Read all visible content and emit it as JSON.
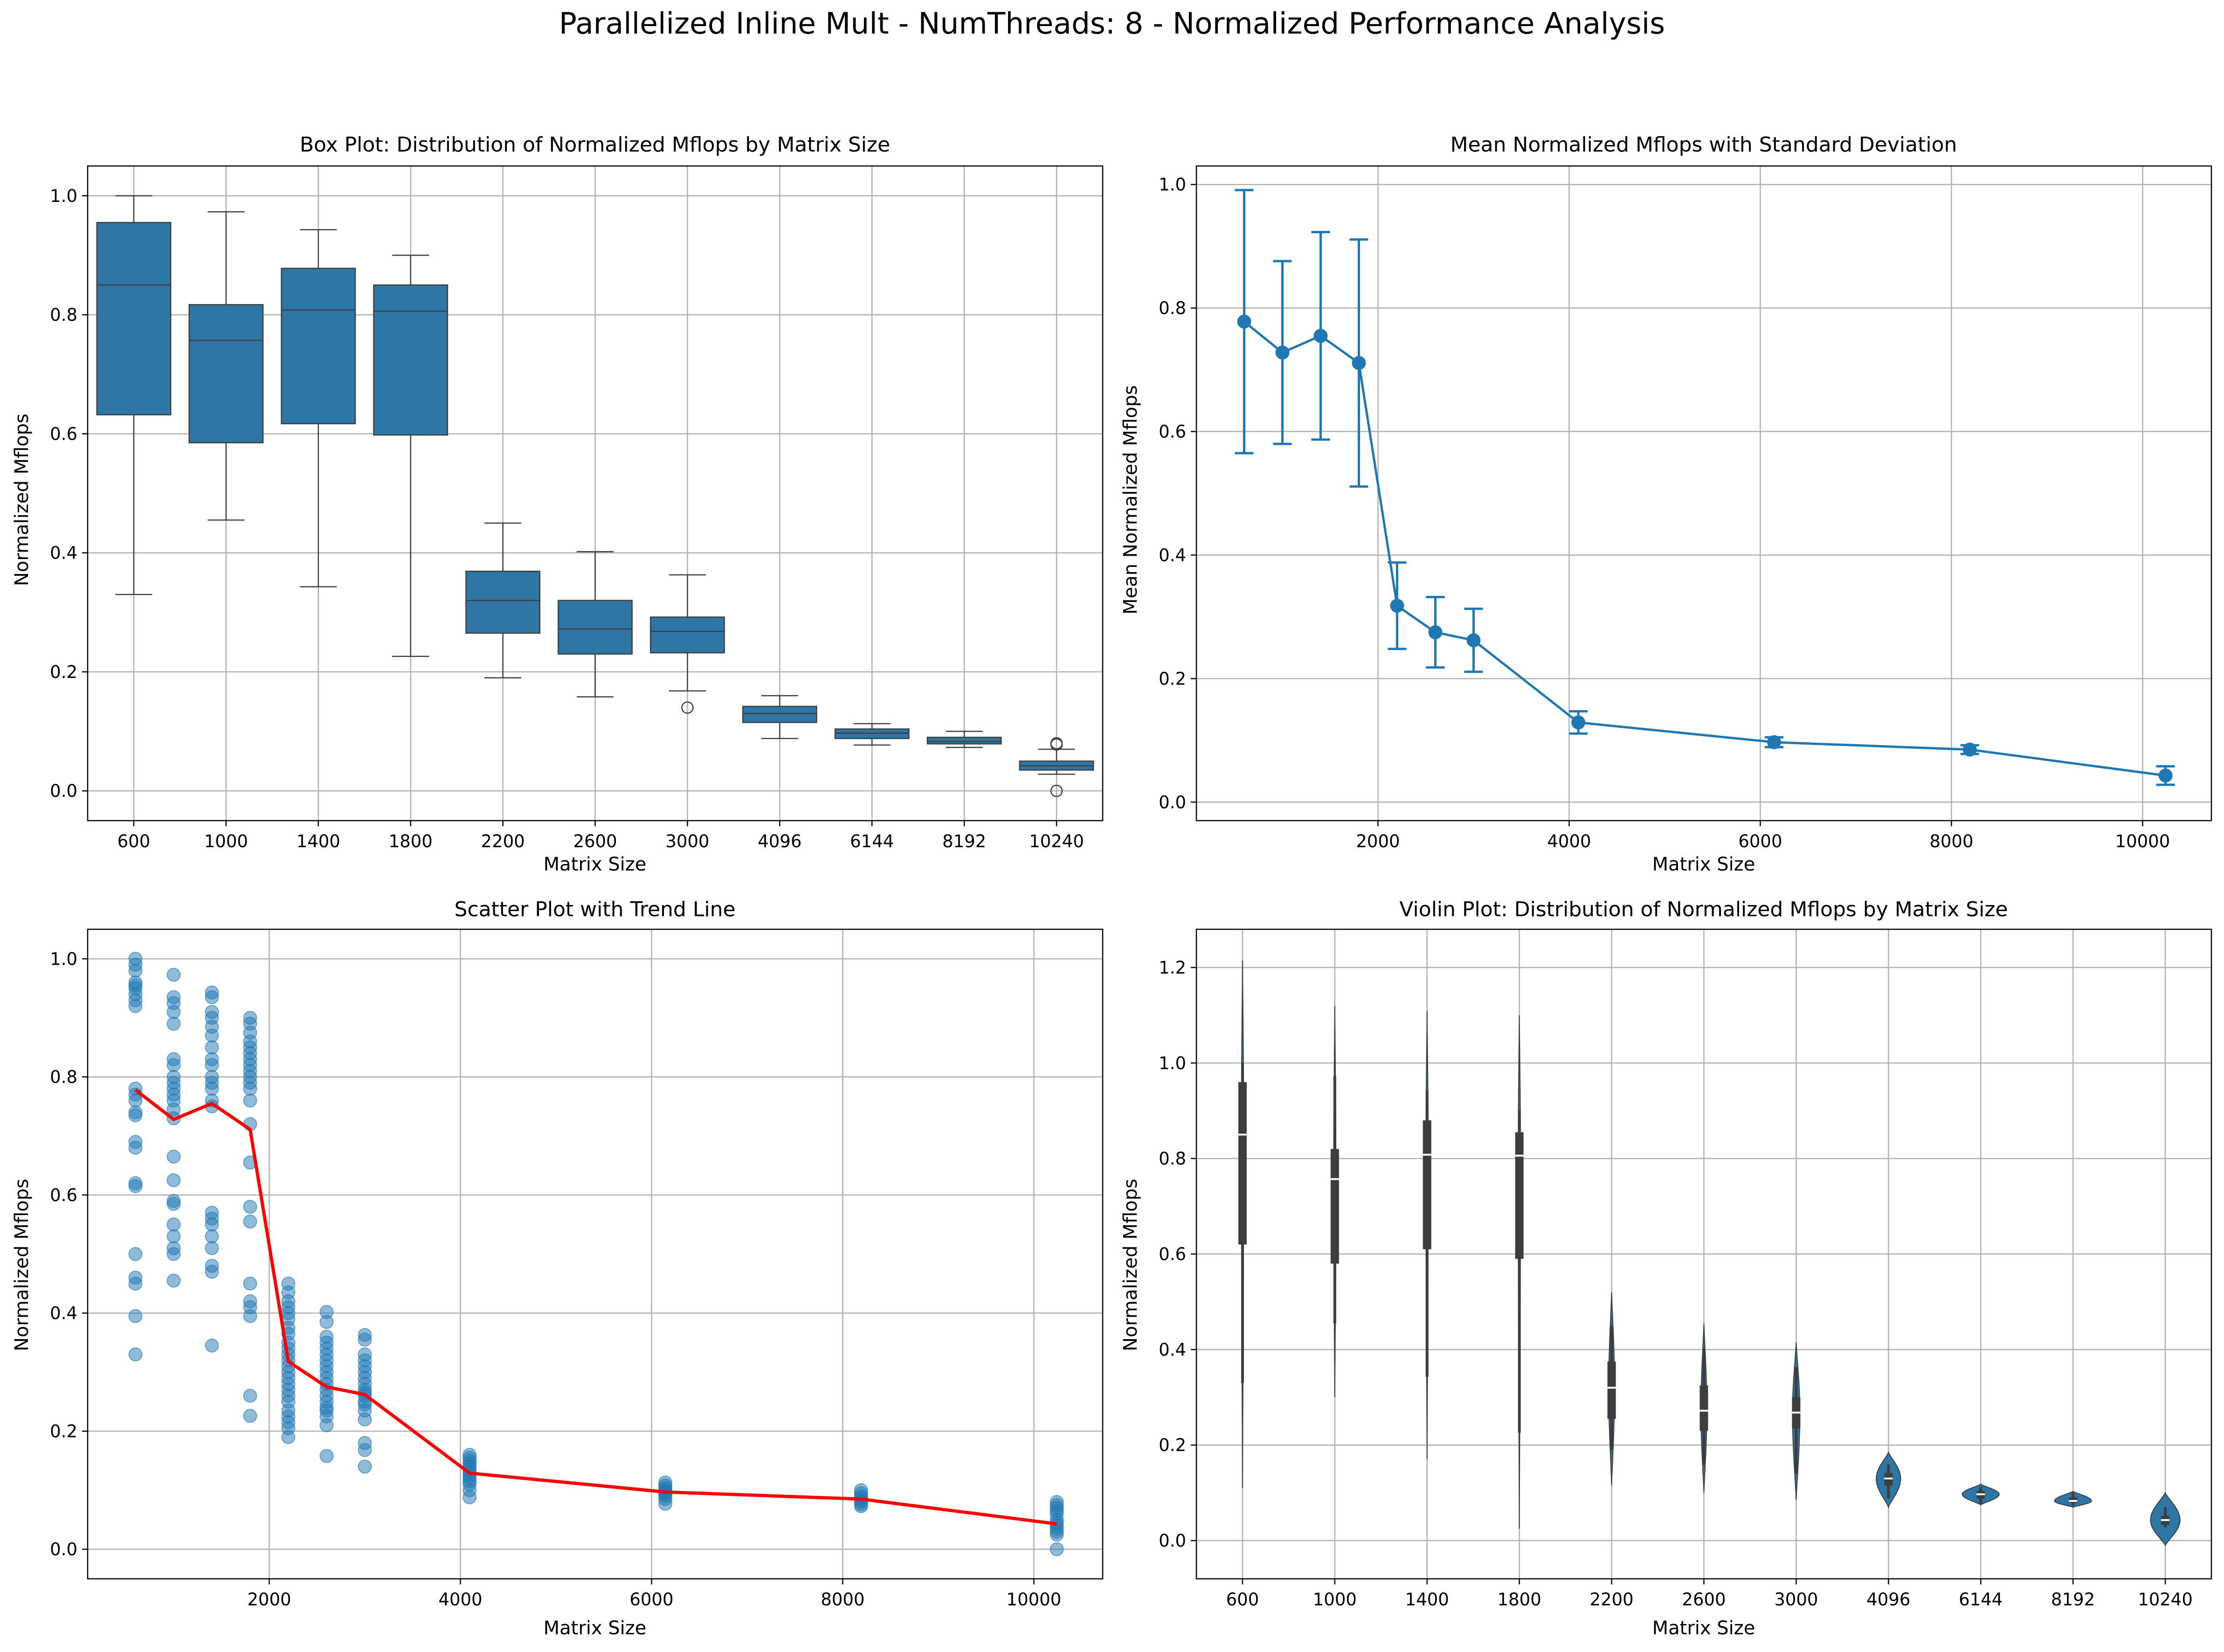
{
  "figure": {
    "title": "Parallelized Inline Mult - NumThreads: 8 - Normalized Performance Analysis"
  },
  "colors": {
    "box": "#2e76a6",
    "errorbar": "#1f77b4",
    "scatter": "#1f77b4",
    "trend": "#ff0000",
    "violin": "#2e76a6",
    "grid": "#b0b0b0"
  },
  "chart_data": [
    {
      "type": "box",
      "title": "Box Plot: Distribution of Normalized Mflops by Matrix Size",
      "xlabel": "Matrix Size",
      "ylabel": "Normalized Mflops",
      "ylim": [
        -0.05,
        1.05
      ],
      "yticks": [
        0.0,
        0.2,
        0.4,
        0.6,
        0.8,
        1.0
      ],
      "grid": true,
      "categories": [
        "600",
        "1000",
        "1400",
        "1800",
        "2200",
        "2600",
        "3000",
        "4096",
        "6144",
        "8192",
        "10240"
      ],
      "boxes": [
        {
          "whisker_low": 0.33,
          "q1": 0.632,
          "median": 0.85,
          "q3": 0.955,
          "whisker_high": 1.0,
          "outliers": []
        },
        {
          "whisker_low": 0.455,
          "q1": 0.585,
          "median": 0.757,
          "q3": 0.817,
          "whisker_high": 0.973,
          "outliers": []
        },
        {
          "whisker_low": 0.343,
          "q1": 0.617,
          "median": 0.808,
          "q3": 0.878,
          "whisker_high": 0.943,
          "outliers": []
        },
        {
          "whisker_low": 0.226,
          "q1": 0.598,
          "median": 0.806,
          "q3": 0.85,
          "whisker_high": 0.9,
          "outliers": []
        },
        {
          "whisker_low": 0.19,
          "q1": 0.265,
          "median": 0.32,
          "q3": 0.369,
          "whisker_high": 0.45,
          "outliers": []
        },
        {
          "whisker_low": 0.158,
          "q1": 0.23,
          "median": 0.272,
          "q3": 0.32,
          "whisker_high": 0.402,
          "outliers": []
        },
        {
          "whisker_low": 0.168,
          "q1": 0.232,
          "median": 0.268,
          "q3": 0.292,
          "whisker_high": 0.363,
          "outliers": [
            0.14
          ]
        },
        {
          "whisker_low": 0.088,
          "q1": 0.115,
          "median": 0.13,
          "q3": 0.142,
          "whisker_high": 0.16,
          "outliers": []
        },
        {
          "whisker_low": 0.077,
          "q1": 0.088,
          "median": 0.097,
          "q3": 0.104,
          "whisker_high": 0.113,
          "outliers": []
        },
        {
          "whisker_low": 0.073,
          "q1": 0.079,
          "median": 0.083,
          "q3": 0.09,
          "whisker_high": 0.1,
          "outliers": []
        },
        {
          "whisker_low": 0.028,
          "q1": 0.035,
          "median": 0.042,
          "q3": 0.05,
          "whisker_high": 0.07,
          "outliers": [
            0.0,
            0.08,
            0.078
          ]
        }
      ]
    },
    {
      "type": "line",
      "title": "Mean Normalized Mflops with Standard Deviation",
      "xlabel": "Matrix Size",
      "ylabel": "Mean Normalized Mflops",
      "xlim": [
        100,
        10720
      ],
      "ylim": [
        -0.03,
        1.03
      ],
      "xticks": [
        2000,
        4000,
        6000,
        8000,
        10000
      ],
      "yticks": [
        0.0,
        0.2,
        0.4,
        0.6,
        0.8,
        1.0
      ],
      "grid": true,
      "x": [
        600,
        1000,
        1400,
        1800,
        2200,
        2600,
        3000,
        4096,
        6144,
        8192,
        10240
      ],
      "mean": [
        0.778,
        0.728,
        0.755,
        0.711,
        0.318,
        0.275,
        0.262,
        0.129,
        0.097,
        0.085,
        0.043
      ],
      "std": [
        0.213,
        0.148,
        0.168,
        0.2,
        0.07,
        0.057,
        0.051,
        0.018,
        0.008,
        0.007,
        0.015
      ]
    },
    {
      "type": "scatter",
      "title": "Scatter Plot with Trend Line",
      "xlabel": "Matrix Size",
      "ylabel": "Normalized Mflops",
      "xlim": [
        100,
        10720
      ],
      "ylim": [
        -0.05,
        1.05
      ],
      "xticks": [
        2000,
        4000,
        6000,
        8000,
        10000
      ],
      "yticks": [
        0.0,
        0.2,
        0.4,
        0.6,
        0.8,
        1.0
      ],
      "grid": true,
      "points": [
        {
          "x": 600,
          "ys": [
            1.0,
            0.99,
            0.98,
            0.96,
            0.955,
            0.95,
            0.94,
            0.93,
            0.92,
            0.78,
            0.77,
            0.76,
            0.74,
            0.735,
            0.69,
            0.68,
            0.62,
            0.615,
            0.5,
            0.46,
            0.45,
            0.395,
            0.33
          ]
        },
        {
          "x": 1000,
          "ys": [
            0.973,
            0.935,
            0.925,
            0.91,
            0.89,
            0.83,
            0.82,
            0.8,
            0.79,
            0.78,
            0.77,
            0.76,
            0.745,
            0.73,
            0.665,
            0.625,
            0.59,
            0.585,
            0.55,
            0.53,
            0.51,
            0.5,
            0.455
          ]
        },
        {
          "x": 1400,
          "ys": [
            0.943,
            0.935,
            0.91,
            0.9,
            0.885,
            0.87,
            0.85,
            0.83,
            0.82,
            0.8,
            0.79,
            0.78,
            0.76,
            0.75,
            0.57,
            0.56,
            0.55,
            0.53,
            0.51,
            0.48,
            0.47,
            0.345
          ]
        },
        {
          "x": 1800,
          "ys": [
            0.9,
            0.89,
            0.875,
            0.86,
            0.85,
            0.84,
            0.83,
            0.82,
            0.81,
            0.8,
            0.79,
            0.78,
            0.76,
            0.72,
            0.655,
            0.58,
            0.555,
            0.45,
            0.42,
            0.41,
            0.395,
            0.26,
            0.226
          ]
        },
        {
          "x": 2200,
          "ys": [
            0.45,
            0.435,
            0.42,
            0.41,
            0.4,
            0.39,
            0.375,
            0.365,
            0.35,
            0.34,
            0.33,
            0.32,
            0.31,
            0.3,
            0.29,
            0.28,
            0.27,
            0.26,
            0.25,
            0.235,
            0.225,
            0.215,
            0.205,
            0.19
          ]
        },
        {
          "x": 2600,
          "ys": [
            0.402,
            0.385,
            0.36,
            0.35,
            0.34,
            0.33,
            0.32,
            0.31,
            0.3,
            0.29,
            0.28,
            0.27,
            0.26,
            0.25,
            0.24,
            0.235,
            0.225,
            0.21,
            0.158
          ]
        },
        {
          "x": 3000,
          "ys": [
            0.363,
            0.355,
            0.33,
            0.32,
            0.31,
            0.3,
            0.29,
            0.28,
            0.27,
            0.265,
            0.26,
            0.25,
            0.245,
            0.235,
            0.22,
            0.18,
            0.168,
            0.14
          ]
        },
        {
          "x": 4096,
          "ys": [
            0.16,
            0.155,
            0.15,
            0.145,
            0.14,
            0.135,
            0.13,
            0.125,
            0.12,
            0.115,
            0.11,
            0.1,
            0.088
          ]
        },
        {
          "x": 6144,
          "ys": [
            0.113,
            0.108,
            0.104,
            0.1,
            0.097,
            0.094,
            0.09,
            0.085,
            0.077
          ]
        },
        {
          "x": 8192,
          "ys": [
            0.1,
            0.095,
            0.09,
            0.087,
            0.083,
            0.08,
            0.076,
            0.073
          ]
        },
        {
          "x": 10240,
          "ys": [
            0.08,
            0.075,
            0.07,
            0.065,
            0.06,
            0.05,
            0.045,
            0.04,
            0.035,
            0.03,
            0.025,
            0.0
          ]
        }
      ],
      "trend": {
        "x": [
          600,
          1000,
          1400,
          1800,
          2200,
          2600,
          3000,
          4096,
          6144,
          8192,
          10240
        ],
        "y": [
          0.778,
          0.728,
          0.755,
          0.711,
          0.318,
          0.275,
          0.262,
          0.129,
          0.097,
          0.085,
          0.043
        ]
      }
    },
    {
      "type": "violin",
      "title": "Violin Plot: Distribution of Normalized Mflops by Matrix Size",
      "xlabel": "Matrix Size",
      "ylabel": "Normalized Mflops",
      "ylim": [
        -0.08,
        1.28
      ],
      "yticks": [
        0.0,
        0.2,
        0.4,
        0.6,
        0.8,
        1.0,
        1.2
      ],
      "grid": true,
      "categories": [
        "600",
        "1000",
        "1400",
        "1800",
        "2200",
        "2600",
        "3000",
        "4096",
        "6144",
        "8192",
        "10240"
      ],
      "violins": [
        {
          "min": 0.11,
          "max": 1.215,
          "q1": 0.62,
          "median": 0.85,
          "q3": 0.96,
          "whisker_low": 0.33,
          "whisker_high": 1.0,
          "width": 0.03
        },
        {
          "min": 0.3,
          "max": 1.12,
          "q1": 0.58,
          "median": 0.757,
          "q3": 0.82,
          "whisker_low": 0.455,
          "whisker_high": 0.973,
          "width": 0.03
        },
        {
          "min": 0.17,
          "max": 1.11,
          "q1": 0.61,
          "median": 0.808,
          "q3": 0.88,
          "whisker_low": 0.343,
          "whisker_high": 0.943,
          "width": 0.03
        },
        {
          "min": 0.025,
          "max": 1.1,
          "q1": 0.59,
          "median": 0.806,
          "q3": 0.855,
          "whisker_low": 0.226,
          "whisker_high": 0.9,
          "width": 0.03
        },
        {
          "min": 0.115,
          "max": 0.52,
          "q1": 0.255,
          "median": 0.32,
          "q3": 0.375,
          "whisker_low": 0.19,
          "whisker_high": 0.45,
          "width": 0.08
        },
        {
          "min": 0.1,
          "max": 0.455,
          "q1": 0.23,
          "median": 0.272,
          "q3": 0.325,
          "whisker_low": 0.158,
          "whisker_high": 0.402,
          "width": 0.08
        },
        {
          "min": 0.085,
          "max": 0.415,
          "q1": 0.235,
          "median": 0.268,
          "q3": 0.3,
          "whisker_low": 0.14,
          "whisker_high": 0.363,
          "width": 0.1
        },
        {
          "min": 0.07,
          "max": 0.185,
          "q1": 0.115,
          "median": 0.13,
          "q3": 0.142,
          "whisker_low": 0.088,
          "whisker_high": 0.16,
          "width": 0.33
        },
        {
          "min": 0.075,
          "max": 0.118,
          "q1": 0.088,
          "median": 0.097,
          "q3": 0.104,
          "whisker_low": 0.077,
          "whisker_high": 0.113,
          "width": 0.5
        },
        {
          "min": 0.07,
          "max": 0.103,
          "q1": 0.079,
          "median": 0.083,
          "q3": 0.09,
          "whisker_low": 0.073,
          "whisker_high": 0.1,
          "width": 0.5
        },
        {
          "min": -0.01,
          "max": 0.1,
          "q1": 0.033,
          "median": 0.043,
          "q3": 0.052,
          "whisker_low": 0.028,
          "whisker_high": 0.07,
          "width": 0.4
        }
      ]
    }
  ]
}
